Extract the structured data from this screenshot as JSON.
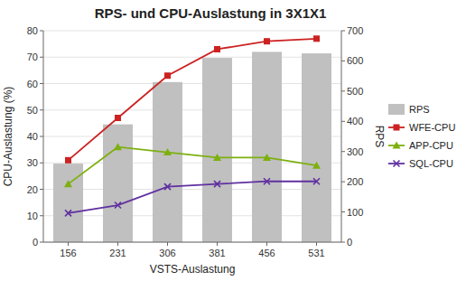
{
  "chart_data": {
    "type": "bar",
    "title": "RPS- und CPU-Auslastung in 3X1X1",
    "x_label": "VSTS-Auslastung",
    "y_label": "CPU-Auslastung (%)",
    "y2_label": "RPS",
    "categories": [
      156,
      231,
      306,
      381,
      456,
      531
    ],
    "series": [
      {
        "name": "RPS",
        "type": "bar",
        "axis": "y2",
        "color": "#c0c0c0",
        "values": [
          260,
          390,
          530,
          610,
          630,
          625
        ]
      },
      {
        "name": "WFE-CPU",
        "type": "line",
        "color": "#cc2222",
        "marker": "square",
        "values": [
          31,
          47,
          63,
          73,
          76,
          77
        ]
      },
      {
        "name": "APP-CPU",
        "type": "line",
        "color": "#7db010",
        "marker": "triangle",
        "values": [
          22,
          36,
          34,
          32,
          32,
          29
        ]
      },
      {
        "name": "SQL-CPU",
        "type": "line",
        "color": "#6030a0",
        "marker": "x",
        "values": [
          11,
          14,
          21,
          22,
          23,
          23
        ]
      }
    ],
    "ylim": [
      0,
      80
    ],
    "yticks": [
      0,
      10,
      20,
      30,
      40,
      50,
      60,
      70,
      80
    ],
    "y2lim": [
      0,
      700
    ],
    "y2ticks": [
      0,
      100,
      200,
      300,
      400,
      500,
      600,
      700
    ],
    "grid": true,
    "legend": "right"
  }
}
